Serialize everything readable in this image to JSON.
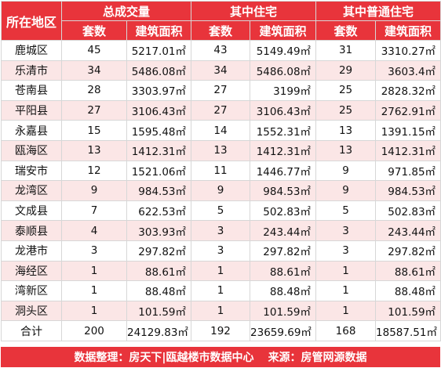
{
  "header": {
    "region": "所在地区",
    "groups": [
      "总成交量",
      "其中住宅",
      "其中普通住宅"
    ],
    "count_label": "套数",
    "area_label": "建筑面积"
  },
  "unit": "㎡",
  "rows": [
    {
      "region": "鹿城区",
      "c1": "45",
      "a1": "5217.01㎡",
      "c2": "43",
      "a2": "5149.49㎡",
      "c3": "31",
      "a3": "3310.27㎡"
    },
    {
      "region": "乐清市",
      "c1": "34",
      "a1": "5486.08㎡",
      "c2": "34",
      "a2": "5486.08㎡",
      "c3": "29",
      "a3": "3603.4㎡"
    },
    {
      "region": "苍南县",
      "c1": "28",
      "a1": "3303.97㎡",
      "c2": "27",
      "a2": "3199㎡",
      "c3": "25",
      "a3": "2828.32㎡"
    },
    {
      "region": "平阳县",
      "c1": "27",
      "a1": "3106.43㎡",
      "c2": "27",
      "a2": "3106.43㎡",
      "c3": "25",
      "a3": "2762.91㎡"
    },
    {
      "region": "永嘉县",
      "c1": "15",
      "a1": "1595.48㎡",
      "c2": "14",
      "a2": "1552.31㎡",
      "c3": "13",
      "a3": "1391.15㎡"
    },
    {
      "region": "瓯海区",
      "c1": "13",
      "a1": "1412.31㎡",
      "c2": "13",
      "a2": "1412.31㎡",
      "c3": "13",
      "a3": "1412.31㎡"
    },
    {
      "region": "瑞安市",
      "c1": "12",
      "a1": "1521.06㎡",
      "c2": "11",
      "a2": "1446.77㎡",
      "c3": "9",
      "a3": "971.85㎡"
    },
    {
      "region": "龙湾区",
      "c1": "9",
      "a1": "984.53㎡",
      "c2": "9",
      "a2": "984.53㎡",
      "c3": "9",
      "a3": "984.53㎡"
    },
    {
      "region": "文成县",
      "c1": "7",
      "a1": "622.53㎡",
      "c2": "5",
      "a2": "502.83㎡",
      "c3": "5",
      "a3": "502.83㎡"
    },
    {
      "region": "泰顺县",
      "c1": "4",
      "a1": "303.93㎡",
      "c2": "3",
      "a2": "243.44㎡",
      "c3": "3",
      "a3": "243.44㎡"
    },
    {
      "region": "龙港市",
      "c1": "3",
      "a1": "297.82㎡",
      "c2": "3",
      "a2": "297.82㎡",
      "c3": "3",
      "a3": "297.82㎡"
    },
    {
      "region": "海经区",
      "c1": "1",
      "a1": "88.61㎡",
      "c2": "1",
      "a2": "88.61㎡",
      "c3": "1",
      "a3": "88.61㎡"
    },
    {
      "region": "湾新区",
      "c1": "1",
      "a1": "88.48㎡",
      "c2": "1",
      "a2": "88.48㎡",
      "c3": "1",
      "a3": "88.48㎡"
    },
    {
      "region": "洞头区",
      "c1": "1",
      "a1": "101.59㎡",
      "c2": "1",
      "a2": "101.59㎡",
      "c3": "1",
      "a3": "101.59㎡"
    }
  ],
  "total": {
    "region": "合计",
    "c1": "200",
    "a1": "24129.83㎡",
    "c2": "192",
    "a2": "23659.69㎡",
    "c3": "168",
    "a3": "18587.51㎡"
  },
  "footer": {
    "left": "数据整理：房天下|瓯越楼市数据中心",
    "right": "来源：房管网源数据"
  },
  "colors": {
    "header_bg": "#e8343b",
    "stripe": "#fbe6e6"
  }
}
